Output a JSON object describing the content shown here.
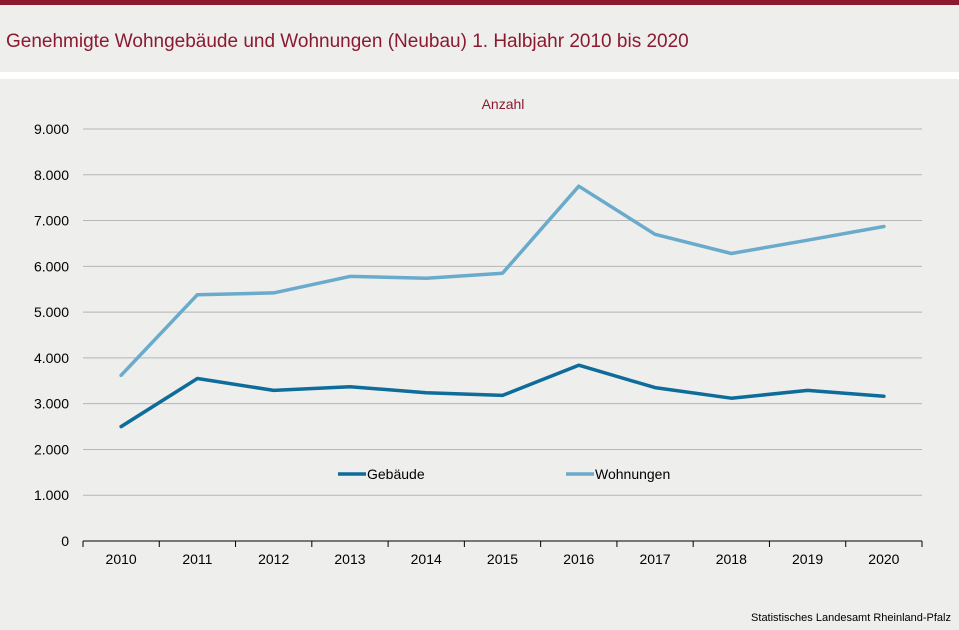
{
  "header": {
    "title": "Genehmigte Wohngebäude und Wohnungen (Neubau) 1. Halbjahr 2010 bis 2020",
    "accent_color": "#8c1a2f"
  },
  "footer": {
    "source": "Statistisches Landesamt Rheinland-Pfalz"
  },
  "chart_data": {
    "type": "line",
    "title": "Genehmigte Wohngebäude und Wohnungen (Neubau) 1. Halbjahr 2010 bis 2020",
    "ylabel": "Anzahl",
    "xlabel": "",
    "categories": [
      "2010",
      "2011",
      "2012",
      "2013",
      "2014",
      "2015",
      "2016",
      "2017",
      "2018",
      "2019",
      "2020"
    ],
    "ylim": [
      0,
      9000
    ],
    "yticks": [
      0,
      1000,
      2000,
      3000,
      4000,
      5000,
      6000,
      7000,
      8000,
      9000
    ],
    "ytick_labels": [
      "0",
      "1.000",
      "2.000",
      "3.000",
      "4.000",
      "5.000",
      "6.000",
      "7.000",
      "8.000",
      "9.000"
    ],
    "grid": true,
    "legend_position": "center",
    "series": [
      {
        "name": "Gebäude",
        "color": "#0e6c9a",
        "values": [
          2500,
          3550,
          3290,
          3370,
          3240,
          3180,
          3840,
          3350,
          3120,
          3290,
          3160
        ]
      },
      {
        "name": "Wohnungen",
        "color": "#6aabcc",
        "values": [
          3620,
          5380,
          5420,
          5780,
          5740,
          5850,
          7750,
          6700,
          6280,
          6570,
          6870
        ]
      }
    ]
  }
}
